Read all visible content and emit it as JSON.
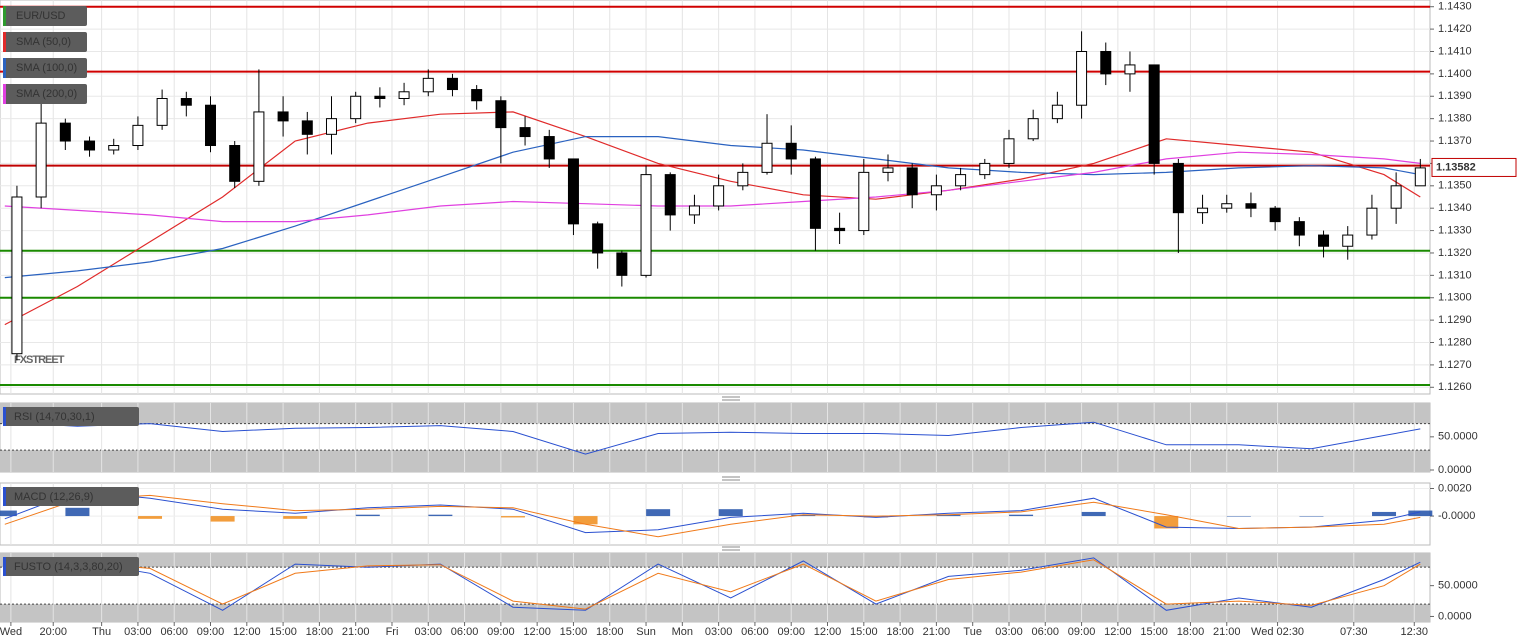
{
  "chart_data": [
    {
      "type": "candlestick",
      "watermark": "FXSTREET",
      "last_price": 1.13582,
      "last_price_color": "#c00000",
      "ylim": [
        1.1257,
        1.1433
      ],
      "yticks": [
        {
          "value": 1.126,
          "label": "1.1260"
        },
        {
          "value": 1.127,
          "label": "1.1270"
        },
        {
          "value": 1.128,
          "label": "1.1280"
        },
        {
          "value": 1.129,
          "label": "1.1290"
        },
        {
          "value": 1.13,
          "label": "1.1300"
        },
        {
          "value": 1.131,
          "label": "1.1310"
        },
        {
          "value": 1.132,
          "label": "1.1320"
        },
        {
          "value": 1.133,
          "label": "1.1330"
        },
        {
          "value": 1.134,
          "label": "1.1340"
        },
        {
          "value": 1.135,
          "label": "1.1350"
        },
        {
          "value": 1.136,
          "label": "1.1360"
        },
        {
          "value": 1.137,
          "label": "1.1370"
        },
        {
          "value": 1.138,
          "label": "1.1380"
        },
        {
          "value": 1.139,
          "label": "1.1390"
        },
        {
          "value": 1.14,
          "label": "1.1400"
        },
        {
          "value": 1.141,
          "label": "1.1410"
        },
        {
          "value": 1.142,
          "label": "1.1420"
        },
        {
          "value": 1.143,
          "label": "1.1430"
        }
      ],
      "grid": true,
      "levels": [
        {
          "value": 1.143,
          "color": "#d00000"
        },
        {
          "value": 1.1401,
          "color": "#d00000"
        },
        {
          "value": 1.1359,
          "color": "#c00000"
        },
        {
          "value": 1.1321,
          "color": "#1a8a00"
        },
        {
          "value": 1.13,
          "color": "#1a8a00"
        },
        {
          "value": 1.1261,
          "color": "#1a8a00"
        }
      ],
      "candles": {
        "name": "EUR/USD",
        "color": "#2e9a2e",
        "x": [
          -7,
          -5,
          -3,
          -1,
          1,
          3,
          5,
          7,
          9,
          11,
          13,
          15,
          17,
          19,
          21,
          23,
          25,
          27,
          29,
          31,
          33,
          35,
          37,
          39,
          41,
          43,
          45,
          47,
          49,
          51,
          53,
          55,
          57,
          59,
          61,
          63,
          65,
          67,
          69,
          71,
          73,
          75,
          77,
          79,
          81,
          83,
          85,
          87,
          89,
          91,
          93,
          95,
          97,
          99,
          101,
          103,
          105,
          107,
          109
        ],
        "open": [
          1.1275,
          1.1345,
          1.1378,
          1.137,
          1.1366,
          1.1368,
          1.1377,
          1.1389,
          1.1386,
          1.1368,
          1.1352,
          1.1383,
          1.1379,
          1.1373,
          1.138,
          1.139,
          1.1389,
          1.1392,
          1.1398,
          1.1393,
          1.1388,
          1.1376,
          1.1372,
          1.1362,
          1.1333,
          1.132,
          1.131,
          1.1355,
          1.1337,
          1.1341,
          1.135,
          1.1356,
          1.1369,
          1.1362,
          1.1331,
          1.133,
          1.1356,
          1.1358,
          1.1346,
          1.135,
          1.1355,
          1.136,
          1.1371,
          1.138,
          1.1386,
          1.141,
          1.14,
          1.1404,
          1.136,
          1.1338,
          1.134,
          1.1342,
          1.134,
          1.1334,
          1.1328,
          1.1323,
          1.1328,
          1.134,
          1.135
        ],
        "high": [
          1.135,
          1.139,
          1.138,
          1.1372,
          1.1371,
          1.1381,
          1.1393,
          1.1392,
          1.139,
          1.137,
          1.1402,
          1.139,
          1.1383,
          1.139,
          1.1392,
          1.1394,
          1.1396,
          1.1402,
          1.14,
          1.1395,
          1.139,
          1.1381,
          1.1375,
          1.1362,
          1.1334,
          1.1321,
          1.1359,
          1.1356,
          1.1346,
          1.1355,
          1.136,
          1.1382,
          1.1377,
          1.1363,
          1.1338,
          1.1362,
          1.1364,
          1.136,
          1.1355,
          1.1358,
          1.1362,
          1.1375,
          1.1384,
          1.1392,
          1.1419,
          1.1414,
          1.141,
          1.1404,
          1.1362,
          1.1346,
          1.1346,
          1.1347,
          1.1341,
          1.1336,
          1.133,
          1.1332,
          1.1346,
          1.1356,
          1.1362
        ],
        "low": [
          1.1272,
          1.134,
          1.1366,
          1.1363,
          1.1364,
          1.1366,
          1.1375,
          1.1381,
          1.1365,
          1.1349,
          1.135,
          1.1372,
          1.1364,
          1.1364,
          1.1378,
          1.1385,
          1.1386,
          1.139,
          1.139,
          1.1384,
          1.136,
          1.1368,
          1.1358,
          1.1328,
          1.1313,
          1.1305,
          1.1309,
          1.133,
          1.1333,
          1.1339,
          1.1348,
          1.1355,
          1.1355,
          1.1321,
          1.1324,
          1.1328,
          1.1352,
          1.134,
          1.1339,
          1.1348,
          1.1353,
          1.1358,
          1.137,
          1.1378,
          1.138,
          1.1395,
          1.1392,
          1.1355,
          1.132,
          1.1333,
          1.1338,
          1.1336,
          1.133,
          1.1323,
          1.1318,
          1.1317,
          1.1326,
          1.1333,
          1.135
        ],
        "close": [
          1.1345,
          1.1378,
          1.137,
          1.1366,
          1.1368,
          1.1377,
          1.1389,
          1.1386,
          1.1368,
          1.1352,
          1.1383,
          1.1379,
          1.1373,
          1.138,
          1.139,
          1.1389,
          1.1392,
          1.1398,
          1.1393,
          1.1388,
          1.1376,
          1.1372,
          1.1362,
          1.1333,
          1.132,
          1.131,
          1.1355,
          1.1337,
          1.1341,
          1.135,
          1.1356,
          1.1369,
          1.1362,
          1.1331,
          1.133,
          1.1356,
          1.1358,
          1.1346,
          1.135,
          1.1355,
          1.136,
          1.1371,
          1.138,
          1.1386,
          1.141,
          1.14,
          1.1404,
          1.136,
          1.1338,
          1.134,
          1.1342,
          1.134,
          1.1334,
          1.1328,
          1.1323,
          1.1328,
          1.134,
          1.135,
          1.1358
        ]
      },
      "series": [
        {
          "name": "SMA (50,0)",
          "color": "#e02a2a",
          "x": [
            -8,
            -2,
            4,
            10,
            16,
            22,
            28,
            34,
            40,
            46,
            52,
            58,
            64,
            70,
            76,
            82,
            88,
            94,
            100,
            106,
            109
          ],
          "values": [
            1.1288,
            1.1305,
            1.1325,
            1.1345,
            1.137,
            1.1378,
            1.1382,
            1.1383,
            1.1372,
            1.136,
            1.1352,
            1.1346,
            1.1344,
            1.1348,
            1.1353,
            1.136,
            1.1371,
            1.1368,
            1.1365,
            1.1355,
            1.1345
          ]
        },
        {
          "name": "SMA (100,0)",
          "color": "#2a62c0",
          "x": [
            -8,
            -2,
            4,
            10,
            16,
            22,
            28,
            34,
            40,
            46,
            52,
            58,
            64,
            70,
            76,
            82,
            88,
            94,
            100,
            106,
            109
          ],
          "values": [
            1.1309,
            1.1312,
            1.1316,
            1.1322,
            1.1332,
            1.1343,
            1.1354,
            1.1365,
            1.1372,
            1.1372,
            1.1368,
            1.1366,
            1.1362,
            1.1358,
            1.1356,
            1.1355,
            1.1356,
            1.1358,
            1.1359,
            1.1358,
            1.1355
          ]
        },
        {
          "name": "SMA (200,0)",
          "color": "#e040e0",
          "x": [
            -8,
            -2,
            4,
            10,
            16,
            22,
            28,
            34,
            40,
            46,
            52,
            58,
            64,
            70,
            76,
            82,
            88,
            94,
            100,
            106,
            109
          ],
          "values": [
            1.1341,
            1.1339,
            1.1337,
            1.1334,
            1.1334,
            1.1337,
            1.1341,
            1.1343,
            1.1342,
            1.1341,
            1.1341,
            1.1343,
            1.1345,
            1.1348,
            1.1352,
            1.1356,
            1.1362,
            1.1365,
            1.1364,
            1.1362,
            1.136
          ]
        }
      ]
    },
    {
      "type": "line",
      "label": "RSI (14,70,30,1)",
      "ylim": [
        -3,
        101
      ],
      "bands": [
        30,
        70
      ],
      "yticks": [
        {
          "value": 0,
          "label": "0.0000"
        },
        {
          "value": 50,
          "label": "50.0000"
        }
      ],
      "series": [
        {
          "color": "#2a50d0",
          "x": [
            -8,
            -2,
            4,
            10,
            16,
            22,
            28,
            34,
            40,
            46,
            52,
            58,
            64,
            70,
            76,
            82,
            88,
            94,
            100,
            106,
            109
          ],
          "values": [
            72,
            66,
            70,
            58,
            63,
            64,
            67,
            58,
            24,
            55,
            57,
            55,
            55,
            52,
            64,
            72,
            38,
            38,
            32,
            52,
            62
          ]
        }
      ]
    },
    {
      "type": "line",
      "label": "MACD (12,26,9)",
      "ylim": [
        -0.0021,
        0.0024
      ],
      "yticks": [
        {
          "value": 0,
          "label": "-0.0000"
        },
        {
          "value": 0.002,
          "label": "0.0020"
        }
      ],
      "bar_colors": [
        "#1f4fa8",
        "#f08c1a"
      ],
      "bars": {
        "x": [
          -8,
          -2,
          4,
          10,
          16,
          22,
          28,
          34,
          40,
          46,
          52,
          58,
          64,
          70,
          76,
          82,
          88,
          94,
          100,
          106,
          109
        ],
        "values": [
          0.0004,
          0.0006,
          -0.0002,
          -0.0004,
          -0.0002,
          0.0001,
          0.0001,
          -0.0001,
          -0.0006,
          0.0005,
          0.0005,
          0.0001,
          -0.0001,
          0.0001,
          0.0001,
          0.0003,
          -0.0009,
          0,
          0,
          0.0003,
          0.0004
        ]
      },
      "series": [
        {
          "color": "#2a50d0",
          "x": [
            -8,
            -2,
            4,
            10,
            16,
            22,
            28,
            34,
            40,
            46,
            52,
            58,
            64,
            70,
            76,
            82,
            88,
            94,
            100,
            106,
            109
          ],
          "values": [
            -0.0002,
            0.0018,
            0.0013,
            0.0005,
            0.0002,
            0.0006,
            0.0008,
            0.0005,
            -0.0012,
            -0.001,
            -0.0001,
            0.0002,
            -0.0001,
            0.0002,
            0.0004,
            0.0013,
            -0.0008,
            -0.0009,
            -0.0008,
            -0.0003,
            0.0003
          ]
        },
        {
          "color": "#f07a1a",
          "x": [
            -8,
            -2,
            4,
            10,
            16,
            22,
            28,
            34,
            40,
            46,
            52,
            58,
            64,
            70,
            76,
            82,
            88,
            94,
            100,
            106,
            109
          ],
          "values": [
            -0.0006,
            0.0012,
            0.0015,
            0.0009,
            0.0004,
            0.0005,
            0.0007,
            0.0006,
            -0.0006,
            -0.0015,
            -0.0006,
            0.0001,
            0,
            0.0001,
            0.0003,
            0.001,
            0.0001,
            -0.0009,
            -0.0008,
            -0.0006,
            -0.0001
          ]
        }
      ]
    },
    {
      "type": "line",
      "label": "FUSTO (14,3,3,80,20)",
      "ylim": [
        -9,
        103
      ],
      "bands": [
        20,
        80
      ],
      "yticks": [
        {
          "value": 0,
          "label": "0.0000"
        },
        {
          "value": 50,
          "label": "50.0000"
        }
      ],
      "xlim": [
        -8.4,
        109.8
      ],
      "xticks": [
        {
          "value": -7.5,
          "label": "Wed"
        },
        {
          "value": -4,
          "label": "20:00"
        },
        {
          "value": 0,
          "label": "Thu"
        },
        {
          "value": 3,
          "label": "03:00"
        },
        {
          "value": 6,
          "label": "06:00"
        },
        {
          "value": 9,
          "label": "09:00"
        },
        {
          "value": 12,
          "label": "12:00"
        },
        {
          "value": 15,
          "label": "15:00"
        },
        {
          "value": 18,
          "label": "18:00"
        },
        {
          "value": 21,
          "label": "21:00"
        },
        {
          "value": 24,
          "label": "Fri"
        },
        {
          "value": 27,
          "label": "03:00"
        },
        {
          "value": 30,
          "label": "06:00"
        },
        {
          "value": 33,
          "label": "09:00"
        },
        {
          "value": 36,
          "label": "12:00"
        },
        {
          "value": 39,
          "label": "15:00"
        },
        {
          "value": 42,
          "label": "18:00"
        },
        {
          "value": 45,
          "label": "Sun"
        },
        {
          "value": 48,
          "label": "Mon"
        },
        {
          "value": 51,
          "label": "03:00"
        },
        {
          "value": 54,
          "label": "06:00"
        },
        {
          "value": 57,
          "label": "09:00"
        },
        {
          "value": 60,
          "label": "12:00"
        },
        {
          "value": 63,
          "label": "15:00"
        },
        {
          "value": 66,
          "label": "18:00"
        },
        {
          "value": 69,
          "label": "21:00"
        },
        {
          "value": 72,
          "label": "Tue"
        },
        {
          "value": 75,
          "label": "03:00"
        },
        {
          "value": 78,
          "label": "06:00"
        },
        {
          "value": 81,
          "label": "09:00"
        },
        {
          "value": 84,
          "label": "12:00"
        },
        {
          "value": 87,
          "label": "15:00"
        },
        {
          "value": 90,
          "label": "18:00"
        },
        {
          "value": 93,
          "label": "21:00"
        },
        {
          "value": 97.2,
          "label": "Wed 02:30"
        },
        {
          "value": 103.5,
          "label": "07:30"
        },
        {
          "value": 108.5,
          "label": "12:30"
        }
      ],
      "series": [
        {
          "color": "#2a50d0",
          "x": [
            -8,
            -2,
            4,
            10,
            16,
            22,
            28,
            34,
            40,
            46,
            52,
            58,
            64,
            70,
            76,
            82,
            88,
            94,
            100,
            106,
            109
          ],
          "values": [
            85,
            90,
            70,
            10,
            85,
            80,
            85,
            15,
            10,
            85,
            30,
            90,
            20,
            65,
            75,
            95,
            10,
            30,
            15,
            60,
            88
          ]
        },
        {
          "color": "#f07a1a",
          "x": [
            -8,
            -2,
            4,
            10,
            16,
            22,
            28,
            34,
            40,
            46,
            52,
            58,
            64,
            70,
            76,
            82,
            88,
            94,
            100,
            106,
            109
          ],
          "values": [
            80,
            88,
            78,
            20,
            70,
            82,
            84,
            25,
            12,
            70,
            40,
            85,
            25,
            60,
            72,
            92,
            20,
            25,
            18,
            50,
            85
          ]
        }
      ]
    }
  ]
}
